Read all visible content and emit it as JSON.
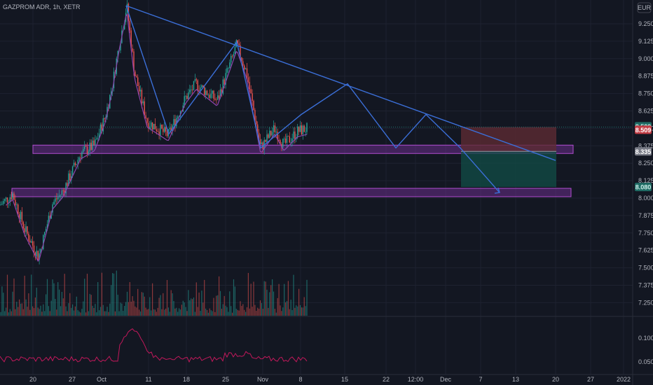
{
  "header": {
    "symbol_title": "GAZPROM ADR, 1h, XETR",
    "currency_button": "EUR"
  },
  "colors": {
    "background": "#131722",
    "grid": "#1e2230",
    "up_candle": "#26a69a",
    "down_candle": "#ef5350",
    "pattern_line": "#3b6fd8",
    "zone_fill": "#6a2d8a",
    "zone_border": "#b04ccf",
    "ma_line": "#8e44ad",
    "osc_line": "#c2185b",
    "stop_zone": "#5c2a33",
    "target_zone": "#124a45"
  },
  "chart_data": {
    "type": "candlestick",
    "title": "GAZPROM ADR, 1h, XETR",
    "y_axis": {
      "ticks": [
        "9.250",
        "9.125",
        "9.000",
        "8.875",
        "8.750",
        "8.625",
        "8.500",
        "8.375",
        "8.250",
        "8.125",
        "8.000",
        "7.875",
        "7.750",
        "7.625",
        "7.500",
        "7.375",
        "7.250"
      ],
      "ylim": [
        7.2,
        9.4
      ]
    },
    "x_axis": {
      "ticks": [
        "20",
        "27",
        "Oct",
        "11",
        "18",
        "25",
        "Nov",
        "8",
        "15",
        "22",
        "12:00",
        "Dec",
        "7",
        "13",
        "20",
        "27",
        "2022"
      ]
    },
    "price_tags": [
      {
        "label": "8.509",
        "kind": "neutral"
      },
      {
        "label": "8.509",
        "kind": "down"
      },
      {
        "label": "8.335",
        "kind": "gray"
      },
      {
        "label": "8.080",
        "kind": "neutral"
      }
    ],
    "path_anchor": [
      [
        "20",
        7.95
      ],
      [
        "20",
        8.03
      ],
      [
        "20",
        7.78
      ],
      [
        "20",
        7.58
      ],
      [
        "27",
        7.96
      ],
      [
        "27",
        8.05
      ],
      [
        "27",
        8.32
      ],
      [
        "Oct",
        8.38
      ],
      [
        "Oct",
        8.58
      ],
      [
        "Oct",
        8.8
      ],
      [
        "Oct",
        9.1
      ],
      [
        "Oct",
        9.38
      ],
      [
        "11",
        8.9
      ],
      [
        "11",
        8.55
      ],
      [
        "11",
        8.45
      ],
      [
        "18",
        8.72
      ],
      [
        "18",
        8.82
      ],
      [
        "25",
        8.7
      ],
      [
        "25",
        9.1
      ],
      [
        "25",
        8.9
      ],
      [
        "Nov",
        8.36
      ],
      [
        "Nov",
        8.5
      ],
      [
        "Nov",
        8.38
      ],
      [
        "8",
        8.48
      ],
      [
        "8",
        8.5
      ]
    ],
    "pattern_lines": [
      {
        "name": "zigzag",
        "points": [
          [
            "Oct",
            9.38
          ],
          [
            "11",
            8.46
          ],
          [
            "25",
            9.12
          ],
          [
            "Nov",
            8.36
          ],
          [
            "8",
            8.6
          ],
          [
            "15",
            8.82
          ],
          [
            "22",
            8.36
          ],
          [
            "12:00",
            8.6
          ],
          [
            "Dec",
            8.36
          ],
          [
            "7",
            8.04
          ]
        ]
      },
      {
        "name": "trendline",
        "points": [
          [
            "Oct",
            9.38
          ],
          [
            "20",
            8.27
          ]
        ]
      }
    ],
    "horizontal_zones": [
      {
        "name": "zone-upper",
        "from": 8.32,
        "to": 8.38
      },
      {
        "name": "zone-lower",
        "from": 8.01,
        "to": 8.07
      }
    ],
    "position_tool": {
      "entry": 8.335,
      "stop": 8.509,
      "target": 8.08
    },
    "oscillator": {
      "ticks": [
        "0.100",
        "0.050"
      ]
    }
  }
}
